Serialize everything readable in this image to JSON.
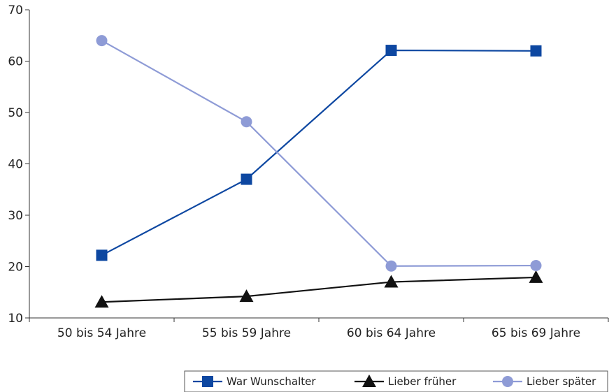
{
  "chart_data": {
    "type": "line",
    "title": "",
    "xlabel": "",
    "ylabel": "",
    "categories": [
      "50 bis 54 Jahre",
      "55 bis 59 Jahre",
      "60 bis 64 Jahre",
      "65 bis 69 Jahre"
    ],
    "ylim": [
      10,
      70
    ],
    "yticks": [
      10,
      20,
      30,
      40,
      50,
      60,
      70
    ],
    "grid": false,
    "legend_position": "bottom-right",
    "series": [
      {
        "name": "War Wunschalter",
        "values": [
          22.2,
          37,
          62.1,
          62
        ],
        "color": "#0d47a1",
        "marker": "square"
      },
      {
        "name": "Lieber früher",
        "values": [
          13.1,
          14.2,
          17,
          17.9
        ],
        "color": "#111111",
        "marker": "triangle"
      },
      {
        "name": "Lieber später",
        "values": [
          64,
          48.2,
          20.1,
          20.2
        ],
        "color": "#8e9bd6",
        "marker": "circle"
      }
    ]
  }
}
